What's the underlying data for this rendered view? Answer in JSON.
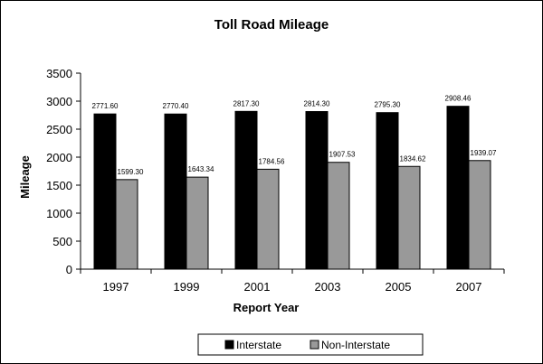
{
  "chart_data": {
    "type": "bar",
    "title": "Toll Road Mileage",
    "xlabel": "Report Year",
    "ylabel": "Mileage",
    "categories": [
      "1997",
      "1999",
      "2001",
      "2003",
      "2005",
      "2007"
    ],
    "series": [
      {
        "name": "Interstate",
        "color": "#000000",
        "values": [
          2771.6,
          2770.4,
          2817.3,
          2814.3,
          2795.3,
          2908.46
        ],
        "labels": [
          "2771.60",
          "2770.40",
          "2817.30",
          "2814.30",
          "2795.30",
          "2908.46"
        ]
      },
      {
        "name": "Non-Interstate",
        "color": "#999999",
        "values": [
          1599.3,
          1643.34,
          1784.56,
          1907.53,
          1834.62,
          1939.07
        ],
        "labels": [
          "1599.30",
          "1643.34",
          "1784.56",
          "1907.53",
          "1834.62",
          "1939.07"
        ]
      }
    ],
    "ylim": [
      0,
      3500
    ],
    "yticks": [
      0,
      500,
      1000,
      1500,
      2000,
      2500,
      3000,
      3500
    ],
    "grid": false,
    "legend_position": "bottom"
  }
}
